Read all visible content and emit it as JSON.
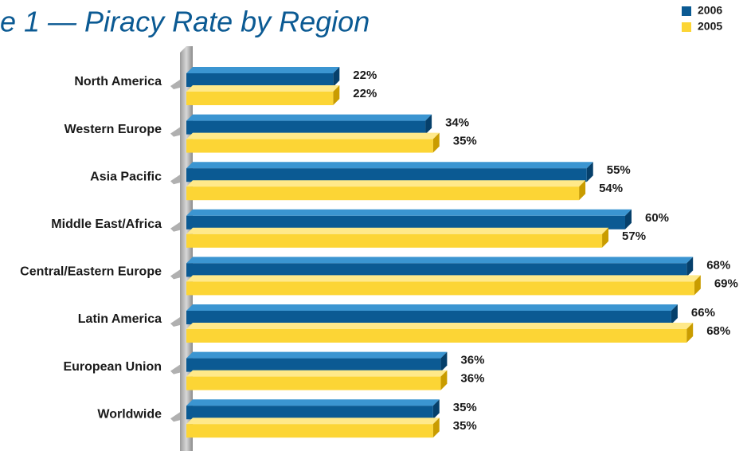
{
  "chart_data": {
    "type": "bar",
    "orientation": "horizontal",
    "title": "e 1 — Piracy Rate by Region",
    "categories": [
      "North America",
      "Western Europe",
      "Asia Pacific",
      "Middle East/Africa",
      "Central/Eastern Europe",
      "Latin America",
      "European Union",
      "Worldwide"
    ],
    "series": [
      {
        "name": "2006",
        "color": "#0b5a93",
        "values": [
          22,
          34,
          55,
          60,
          68,
          66,
          36,
          35
        ],
        "value_labels": [
          "22%",
          "34%",
          "55%",
          "60%",
          "68%",
          "66%",
          "36%",
          "35%"
        ]
      },
      {
        "name": "2005",
        "color": "#fcd535",
        "values": [
          22,
          35,
          54,
          57,
          69,
          68,
          36,
          35
        ],
        "value_labels": [
          "22%",
          "35%",
          "54%",
          "57%",
          "69%",
          "68%",
          "36%",
          "35%"
        ]
      }
    ],
    "legend": "top-right"
  }
}
